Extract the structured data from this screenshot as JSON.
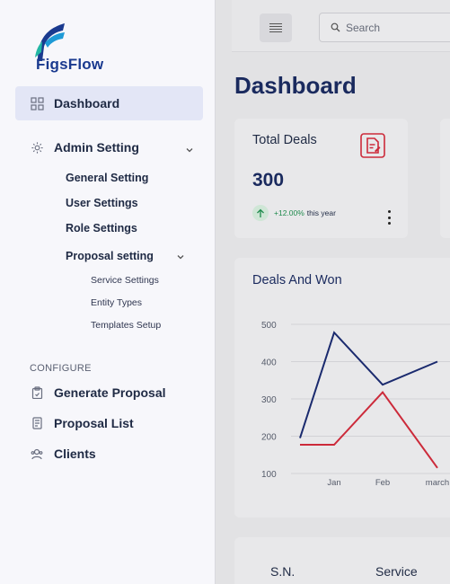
{
  "app": {
    "name": "FigsFlow"
  },
  "sidebar": {
    "dashboard": "Dashboard",
    "admin_setting": "Admin Setting",
    "admin_children": [
      "General Setting",
      "User Settings",
      "Role Settings"
    ],
    "proposal_setting": "Proposal setting",
    "proposal_children": [
      "Service Settings",
      "Entity Types",
      "Templates Setup"
    ],
    "configure_label": "CONFIGURE",
    "configure_items": [
      "Generate Proposal",
      "Proposal List",
      "Clients"
    ]
  },
  "topbar": {
    "search_placeholder": "Search"
  },
  "page": {
    "title": "Dashboard"
  },
  "deals_card": {
    "title": "Total Deals",
    "value": "300",
    "trend_pct": "+12.00%",
    "trend_suffix": "this year",
    "trend_color": "#1e8a4c"
  },
  "chart_data": {
    "type": "line",
    "title": "Deals And Won",
    "categories": [
      "",
      "Jan",
      "Feb",
      "march"
    ],
    "ylim": [
      100,
      500
    ],
    "yticks": [
      "500",
      "400",
      "300",
      "200",
      "100"
    ],
    "series": [
      {
        "color": "#1a2a6e",
        "values": [
          195,
          478,
          338,
          400
        ]
      },
      {
        "color": "#cc2a3a",
        "values": [
          177,
          177,
          318,
          115
        ]
      }
    ],
    "grid": true
  },
  "table": {
    "headers": [
      "S.N.",
      "Service"
    ]
  },
  "colors": {
    "accent": "#1a2a5e",
    "active_bg": "#e3e6f6",
    "doc_icon": "#cc2a3a"
  }
}
